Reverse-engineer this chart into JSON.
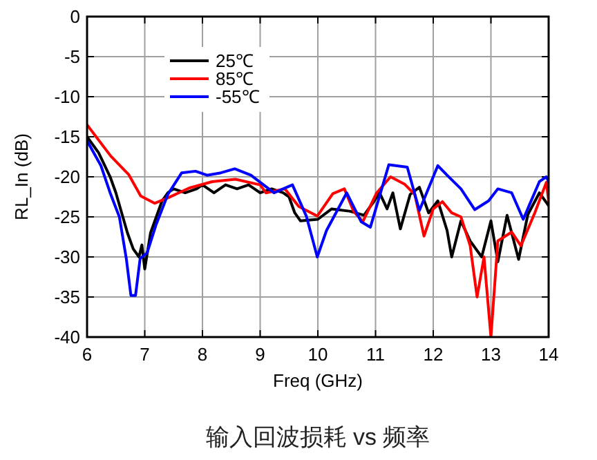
{
  "chart_data": {
    "type": "line",
    "title": "输入回波损耗 vs 频率",
    "xlabel": "Freq (GHz)",
    "ylabel": "RL_In (dB)",
    "xlim": [
      6,
      14
    ],
    "ylim": [
      -40,
      0
    ],
    "xticks": [
      6,
      7,
      8,
      9,
      10,
      11,
      12,
      13,
      14
    ],
    "yticks": [
      -40,
      -35,
      -30,
      -25,
      -20,
      -15,
      -10,
      -5,
      0
    ],
    "grid": true,
    "legend": "top left",
    "line_style": "solid",
    "marker": "none",
    "series": [
      {
        "name": "25℃",
        "color": "#000000",
        "x": [
          6.0,
          6.2,
          6.4,
          6.5,
          6.6,
          6.7,
          6.8,
          6.9,
          6.95,
          7.0,
          7.1,
          7.2,
          7.3,
          7.4,
          7.5,
          7.7,
          7.9,
          8.0,
          8.2,
          8.4,
          8.6,
          8.8,
          9.0,
          9.2,
          9.4,
          9.5,
          9.6,
          9.7,
          10.0,
          10.24,
          10.56,
          10.8,
          10.95,
          11.07,
          11.2,
          11.3,
          11.43,
          11.6,
          11.76,
          11.92,
          12.08,
          12.24,
          12.32,
          12.48,
          12.64,
          12.84,
          13.0,
          13.12,
          13.28,
          13.48,
          13.64,
          13.84,
          14.0
        ],
        "values": [
          -15,
          -17,
          -20,
          -22,
          -24.5,
          -27,
          -29,
          -30,
          -28.5,
          -31.5,
          -27,
          -25,
          -23,
          -22,
          -21.5,
          -22,
          -21.5,
          -21,
          -22,
          -21,
          -21.5,
          -21,
          -22,
          -21.5,
          -22,
          -22.5,
          -24.5,
          -25.5,
          -25.3,
          -24,
          -24.3,
          -24.8,
          -23.3,
          -22,
          -24,
          -22,
          -26.5,
          -22.2,
          -21.3,
          -24.5,
          -23,
          -26.7,
          -30,
          -25.5,
          -28,
          -30,
          -25.5,
          -30.6,
          -24.8,
          -30.3,
          -24.7,
          -22,
          -23.6
        ]
      },
      {
        "name": "85℃",
        "color": "#ff0000",
        "x": [
          6.0,
          6.41,
          6.72,
          6.93,
          7.17,
          7.41,
          7.77,
          8.17,
          8.57,
          9.0,
          9.1,
          9.43,
          9.67,
          9.99,
          10.26,
          10.46,
          10.62,
          10.78,
          11.02,
          11.26,
          11.5,
          11.68,
          11.84,
          12.0,
          12.16,
          12.32,
          12.48,
          12.64,
          12.76,
          12.88,
          13.0,
          13.12,
          13.36,
          13.52,
          13.76,
          13.96,
          14.0
        ],
        "values": [
          -13.5,
          -17.4,
          -19.7,
          -22.4,
          -23.3,
          -22.6,
          -21.4,
          -20.6,
          -20.3,
          -21,
          -22,
          -21.5,
          -23.7,
          -24.9,
          -22.1,
          -21.5,
          -24.3,
          -25.6,
          -22,
          -20,
          -20.9,
          -22.2,
          -27.4,
          -24,
          -23.1,
          -24.5,
          -25,
          -28.6,
          -35,
          -30,
          -40,
          -28,
          -26.9,
          -28.6,
          -24.5,
          -20.7,
          -23
        ]
      },
      {
        "name": "-55℃",
        "color": "#0000ff",
        "x": [
          6.0,
          6.24,
          6.4,
          6.56,
          6.68,
          6.76,
          6.84,
          6.92,
          7.04,
          7.2,
          7.4,
          7.64,
          7.88,
          8.08,
          8.32,
          8.56,
          8.84,
          9.04,
          9.24,
          9.56,
          9.8,
          9.99,
          10.15,
          10.5,
          10.75,
          10.91,
          11.23,
          11.55,
          11.76,
          12.08,
          12.24,
          12.48,
          12.72,
          12.96,
          13.12,
          13.36,
          13.56,
          13.84,
          13.96,
          14.0
        ],
        "values": [
          -15.5,
          -18.6,
          -22,
          -25,
          -30.2,
          -34.8,
          -34.8,
          -30.2,
          -29.5,
          -25.9,
          -22.2,
          -19.5,
          -19.3,
          -19.8,
          -19.5,
          -19,
          -19.8,
          -20.9,
          -22,
          -21,
          -24.9,
          -30,
          -26.7,
          -22,
          -25.6,
          -26.3,
          -18.5,
          -18.8,
          -24.2,
          -18.6,
          -19.8,
          -21.5,
          -24.1,
          -23,
          -21.5,
          -22,
          -25.3,
          -20.6,
          -20,
          -20.6
        ]
      }
    ]
  }
}
